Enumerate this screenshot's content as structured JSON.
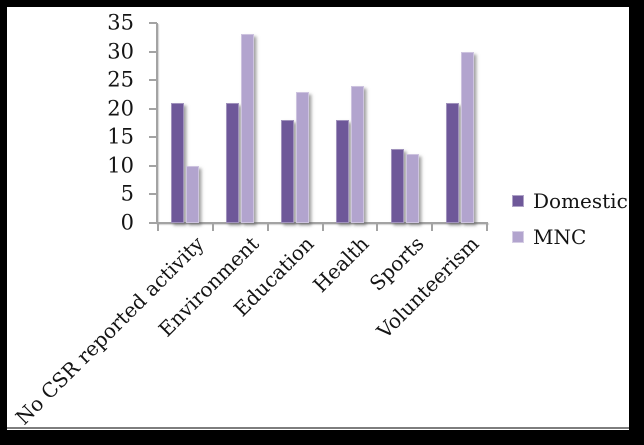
{
  "chart_data": {
    "type": "bar",
    "title": "",
    "categories": [
      "No CSR reported activity",
      "Environment",
      "Education",
      "Health",
      "Sports",
      "Volunteerism"
    ],
    "series": [
      {
        "name": "Domestic",
        "color": "#6e5899",
        "values": [
          21,
          21,
          18,
          18,
          13,
          21
        ]
      },
      {
        "name": "MNC",
        "color": "#b2a4ce",
        "values": [
          10,
          33,
          23,
          24,
          12,
          30
        ]
      }
    ],
    "xlabel": "",
    "ylabel": "",
    "ylim": [
      0,
      35
    ],
    "ytick_step": 5,
    "yticks": [
      0,
      5,
      10,
      15,
      20,
      25,
      30,
      35
    ],
    "grid": false,
    "legend_position": "right",
    "category_label_rotation_deg": 45
  },
  "colors": {
    "frame": "#000000",
    "chart_background": "#ffffff",
    "axis": "#a3a3a3",
    "text": "#141414",
    "bottom_rule": "#7d7d7d"
  }
}
